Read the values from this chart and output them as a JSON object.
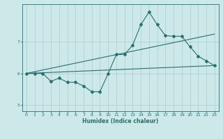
{
  "background_color": "#cce8e8",
  "grid_color": "#aacccc",
  "line_color": "#2a6e6e",
  "xlabel": "Humidex (Indice chaleur)",
  "ylim": [
    4.8,
    8.2
  ],
  "xlim": [
    -0.5,
    23.5
  ],
  "yticks": [
    5,
    6,
    7
  ],
  "xticks": [
    0,
    1,
    2,
    3,
    4,
    5,
    6,
    7,
    8,
    9,
    10,
    11,
    12,
    13,
    14,
    15,
    16,
    17,
    18,
    19,
    20,
    21,
    22,
    23
  ],
  "series1_x": [
    0,
    1,
    2,
    3,
    4,
    5,
    6,
    7,
    8,
    9,
    10,
    11,
    12,
    13,
    14,
    15,
    16,
    17,
    18,
    19,
    20,
    21,
    22,
    23
  ],
  "series1_y": [
    6.0,
    6.0,
    6.0,
    5.75,
    5.85,
    5.72,
    5.72,
    5.6,
    5.42,
    5.42,
    6.0,
    6.6,
    6.6,
    6.9,
    7.55,
    7.95,
    7.55,
    7.2,
    7.18,
    7.18,
    6.85,
    6.55,
    6.4,
    6.25
  ],
  "trend1_x": [
    0,
    23
  ],
  "trend1_y": [
    6.0,
    7.25
  ],
  "trend2_x": [
    0,
    23
  ],
  "trend2_y": [
    6.0,
    6.25
  ]
}
